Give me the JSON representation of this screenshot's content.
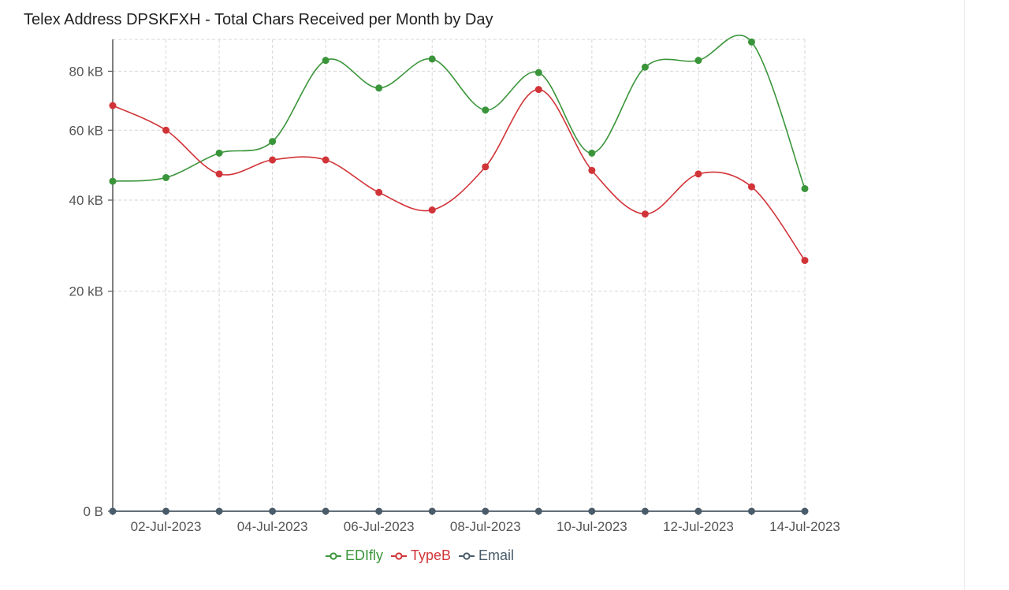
{
  "chart_data": {
    "type": "line",
    "title": "Telex Address DPSKFXH - Total Chars Received per Month by Day",
    "xlabel": "",
    "ylabel": "",
    "x": [
      "2023-07-01",
      "2023-07-02",
      "2023-07-03",
      "2023-07-04",
      "2023-07-05",
      "2023-07-06",
      "2023-07-07",
      "2023-07-08",
      "2023-07-09",
      "2023-07-10",
      "2023-07-11",
      "2023-07-12",
      "2023-07-13",
      "2023-07-14"
    ],
    "x_tick_labels": [
      "02-Jul-2023",
      "04-Jul-2023",
      "06-Jul-2023",
      "08-Jul-2023",
      "10-Jul-2023",
      "12-Jul-2023",
      "14-Jul-2023"
    ],
    "y_tick_labels": [
      "0 B",
      "20 kB",
      "40 kB",
      "60 kB",
      "80 kB"
    ],
    "y_tick_values": [
      0,
      20000,
      40000,
      60000,
      80000
    ],
    "y_scale": "sqrt",
    "ylim": [
      0,
      92000
    ],
    "grid": true,
    "legend_position": "bottom",
    "series": [
      {
        "name": "EDIfly",
        "color": "#3a953a",
        "values": [
          45000,
          46000,
          53000,
          56500,
          84000,
          74000,
          84500,
          66500,
          79500,
          53000,
          81500,
          84000,
          91000,
          43000
        ]
      },
      {
        "name": "TypeB",
        "color": "#d13438",
        "values": [
          68000,
          60000,
          47000,
          51000,
          51000,
          42000,
          37500,
          49000,
          73500,
          48000,
          36500,
          47000,
          43500,
          26000
        ]
      },
      {
        "name": "Email",
        "color": "#4a5c6a",
        "values": [
          0,
          0,
          0,
          0,
          0,
          0,
          0,
          0,
          0,
          0,
          0,
          0,
          0,
          0
        ]
      }
    ]
  }
}
